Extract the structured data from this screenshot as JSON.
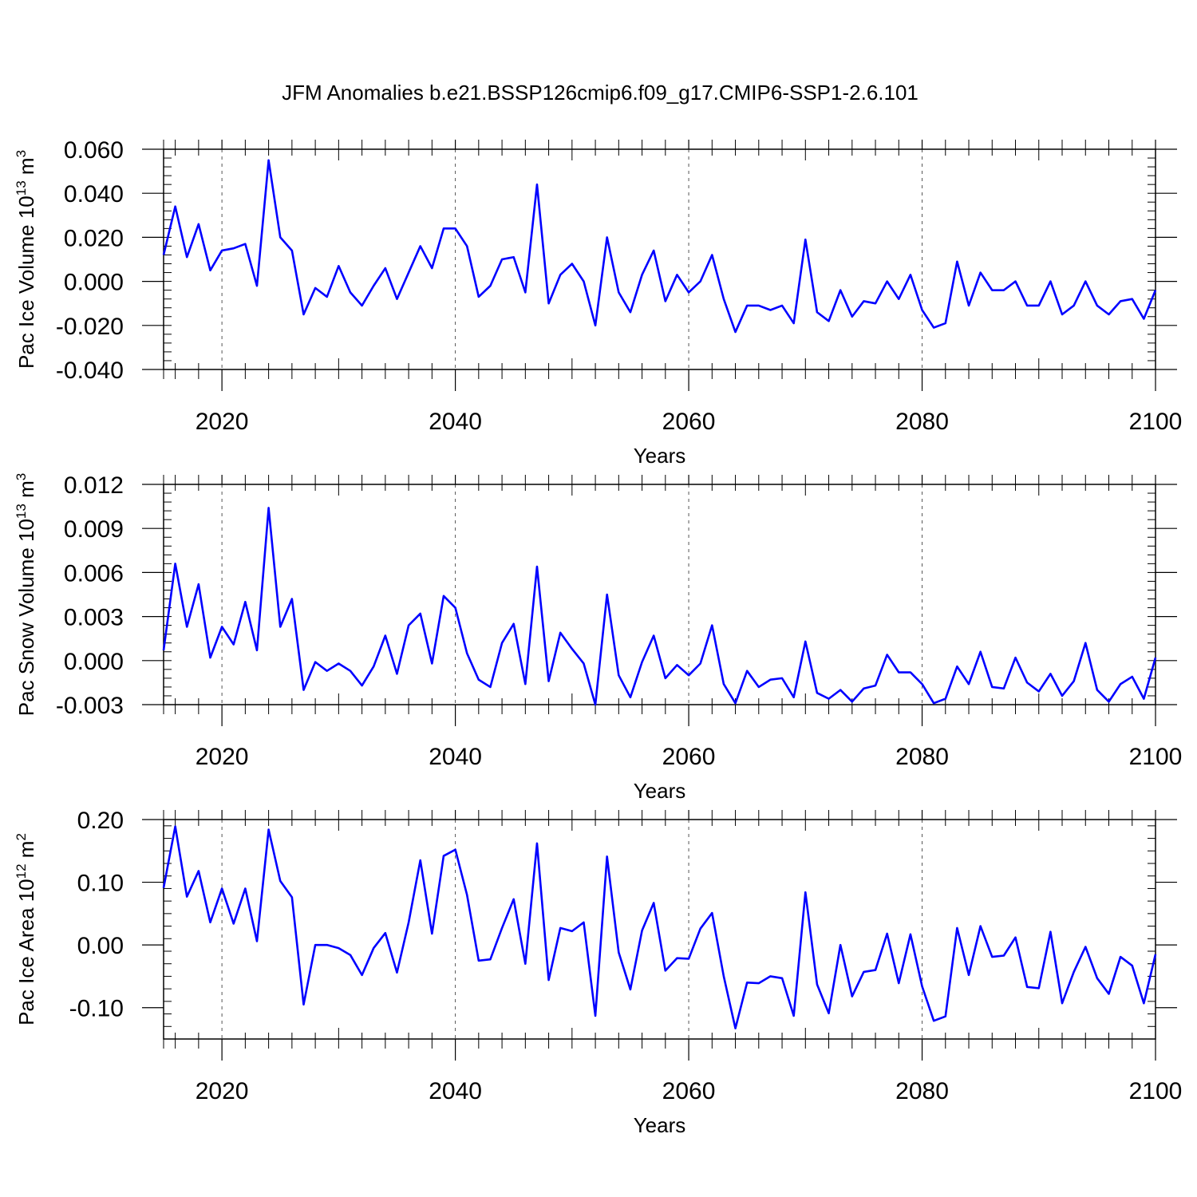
{
  "figure": {
    "title": "JFM Anomalies b.e21.BSSP126cmip6.f09_g17.CMIP6-SSP1-2.6.101",
    "line_color": "#0000ff"
  },
  "chart_data": [
    {
      "type": "line",
      "ylabel_main": "Pac Ice Volume 10",
      "ylabel_exp": "13",
      "ylabel_unit": " m",
      "ylabel_unit_exp": "3",
      "xlabel": "Years",
      "xlim": [
        2015,
        2100
      ],
      "ylim": [
        -0.04,
        0.06
      ],
      "yticks": [
        0.06,
        0.04,
        0.02,
        0.0,
        -0.02,
        -0.04
      ],
      "ytick_labels": [
        "0.060",
        "0.040",
        "0.020",
        "0.000",
        "-0.020",
        "-0.040"
      ],
      "xticks": [
        2020,
        2040,
        2060,
        2080,
        2100
      ],
      "xtick_labels": [
        "2020",
        "2040",
        "2060",
        "2080",
        "2100"
      ],
      "x_start": 2015,
      "values": [
        0.012,
        0.034,
        0.011,
        0.026,
        0.005,
        0.014,
        0.015,
        0.017,
        -0.002,
        0.055,
        0.02,
        0.014,
        -0.015,
        -0.003,
        -0.007,
        0.007,
        -0.005,
        -0.011,
        -0.002,
        0.006,
        -0.008,
        0.004,
        0.016,
        0.006,
        0.024,
        0.024,
        0.016,
        -0.007,
        -0.002,
        0.01,
        0.011,
        -0.005,
        0.044,
        -0.01,
        0.003,
        0.008,
        0.0,
        -0.02,
        0.02,
        -0.005,
        -0.014,
        0.003,
        0.014,
        -0.009,
        0.003,
        -0.005,
        0.0,
        0.012,
        -0.008,
        -0.023,
        -0.011,
        -0.011,
        -0.013,
        -0.011,
        -0.019,
        0.019,
        -0.014,
        -0.018,
        -0.004,
        -0.016,
        -0.009,
        -0.01,
        0.0,
        -0.008,
        0.003,
        -0.013,
        -0.021,
        -0.019,
        0.009,
        -0.011,
        0.004,
        -0.004,
        -0.004,
        0.0,
        -0.011,
        -0.011,
        0.0,
        -0.015,
        -0.011,
        0.0,
        -0.011,
        -0.015,
        -0.009,
        -0.008,
        -0.017,
        -0.004
      ]
    },
    {
      "type": "line",
      "ylabel_main": "Pac Snow Volume 10",
      "ylabel_exp": "13",
      "ylabel_unit": " m",
      "ylabel_unit_exp": "3",
      "xlabel": "Years",
      "xlim": [
        2015,
        2100
      ],
      "ylim": [
        -0.003,
        0.012
      ],
      "yticks": [
        0.012,
        0.009,
        0.006,
        0.003,
        0.0,
        -0.003
      ],
      "ytick_labels": [
        "0.012",
        "0.009",
        "0.006",
        "0.003",
        "0.000",
        "-0.003"
      ],
      "xticks": [
        2020,
        2040,
        2060,
        2080,
        2100
      ],
      "xtick_labels": [
        "2020",
        "2040",
        "2060",
        "2080",
        "2100"
      ],
      "x_start": 2015,
      "values": [
        0.0007,
        0.0066,
        0.0023,
        0.0052,
        0.0002,
        0.0023,
        0.0011,
        0.004,
        0.0007,
        0.0104,
        0.0023,
        0.0042,
        -0.002,
        -0.0001,
        -0.0007,
        -0.0002,
        -0.0007,
        -0.0017,
        -0.0004,
        0.0017,
        -0.0009,
        0.0024,
        0.0032,
        -0.0002,
        0.0044,
        0.0036,
        0.0005,
        -0.0013,
        -0.0018,
        0.0012,
        0.0025,
        -0.0016,
        0.0064,
        -0.0014,
        0.0019,
        0.0008,
        -0.0002,
        -0.003,
        0.0045,
        -0.001,
        -0.0025,
        -0.0001,
        0.0017,
        -0.0012,
        -0.0003,
        -0.001,
        -0.0002,
        0.0024,
        -0.0016,
        -0.0029,
        -0.0007,
        -0.0018,
        -0.0013,
        -0.0012,
        -0.0025,
        0.0013,
        -0.0022,
        -0.0026,
        -0.002,
        -0.0028,
        -0.0019,
        -0.0017,
        0.0004,
        -0.0008,
        -0.0008,
        -0.0016,
        -0.0029,
        -0.0026,
        -0.0004,
        -0.0016,
        0.0006,
        -0.0018,
        -0.0019,
        0.0002,
        -0.0015,
        -0.0021,
        -0.0009,
        -0.0024,
        -0.0014,
        0.0012,
        -0.002,
        -0.0028,
        -0.0016,
        -0.0011,
        -0.0026,
        0.0002
      ]
    },
    {
      "type": "line",
      "ylabel_main": "Pac Ice Area 10",
      "ylabel_exp": "12",
      "ylabel_unit": " m",
      "ylabel_unit_exp": "2",
      "xlabel": "Years",
      "xlim": [
        2015,
        2100
      ],
      "ylim": [
        -0.15,
        0.2
      ],
      "yticks": [
        0.2,
        0.1,
        0.0,
        -0.1
      ],
      "ytick_labels": [
        "0.20",
        "0.10",
        "0.00",
        "-0.10"
      ],
      "xticks": [
        2020,
        2040,
        2060,
        2080,
        2100
      ],
      "xtick_labels": [
        "2020",
        "2040",
        "2060",
        "2080",
        "2100"
      ],
      "x_start": 2015,
      "values": [
        0.091,
        0.189,
        0.077,
        0.118,
        0.036,
        0.09,
        0.034,
        0.09,
        0.006,
        0.184,
        0.102,
        0.076,
        -0.095,
        0.0,
        0.0,
        -0.005,
        -0.016,
        -0.048,
        -0.005,
        0.019,
        -0.044,
        0.036,
        0.135,
        0.018,
        0.142,
        0.152,
        0.08,
        -0.025,
        -0.023,
        0.027,
        0.073,
        -0.03,
        0.162,
        -0.056,
        0.027,
        0.022,
        0.036,
        -0.113,
        0.141,
        -0.012,
        -0.071,
        0.023,
        0.067,
        -0.041,
        -0.021,
        -0.022,
        0.026,
        0.051,
        -0.05,
        -0.133,
        -0.06,
        -0.061,
        -0.05,
        -0.053,
        -0.113,
        0.084,
        -0.063,
        -0.109,
        0.0,
        -0.082,
        -0.043,
        -0.04,
        0.018,
        -0.061,
        0.017,
        -0.066,
        -0.121,
        -0.114,
        0.027,
        -0.048,
        0.03,
        -0.019,
        -0.017,
        0.012,
        -0.067,
        -0.069,
        0.021,
        -0.093,
        -0.043,
        -0.003,
        -0.053,
        -0.078,
        -0.019,
        -0.033,
        -0.093,
        -0.015
      ]
    }
  ]
}
